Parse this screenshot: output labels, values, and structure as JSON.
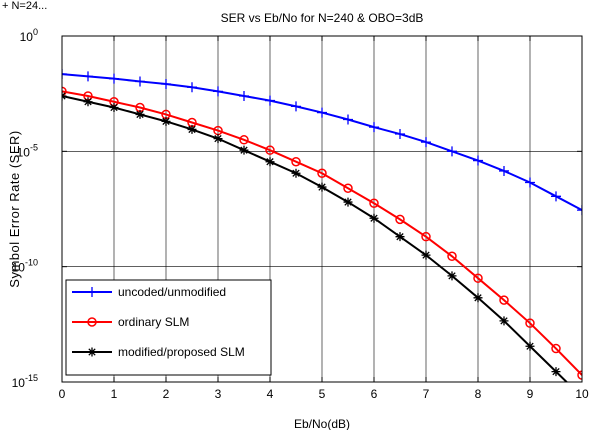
{
  "stray_text": "+ N=24...",
  "chart_data": {
    "type": "line",
    "title": "SER vs Eb/No for N=240 & OBO=3dB",
    "xlabel": "Eb/No(dB)",
    "ylabel": "Symbol Error Rate (SER)",
    "xlim": [
      0,
      10
    ],
    "ylim": [
      1e-15,
      1
    ],
    "yscale": "log",
    "grid": true,
    "legend_position": "bottom-left",
    "x_ticks": [
      "0",
      "1",
      "2",
      "3",
      "4",
      "5",
      "6",
      "7",
      "8",
      "9",
      "10"
    ],
    "y_ticks": [
      {
        "base": "10",
        "exp": "-15"
      },
      {
        "base": "10",
        "exp": "-10"
      },
      {
        "base": "10",
        "exp": "-5"
      },
      {
        "base": "10",
        "exp": "0"
      }
    ],
    "x": [
      0,
      0.5,
      1,
      1.5,
      2,
      2.5,
      3,
      3.5,
      4,
      4.5,
      5,
      5.5,
      6,
      6.5,
      7,
      7.5,
      8,
      8.5,
      9,
      9.5,
      10
    ],
    "series": [
      {
        "name": "uncoded/unmodified",
        "color": "#0000ff",
        "marker": "plus",
        "log10_values": [
          -1.65,
          -1.75,
          -1.85,
          -1.97,
          -2.08,
          -2.22,
          -2.4,
          -2.6,
          -2.8,
          -3.05,
          -3.32,
          -3.62,
          -3.95,
          -4.25,
          -4.6,
          -5.0,
          -5.4,
          -5.85,
          -6.35,
          -6.95,
          -7.55
        ]
      },
      {
        "name": "ordinary SLM",
        "color": "#ff0000",
        "marker": "circle",
        "log10_values": [
          -2.4,
          -2.6,
          -2.85,
          -3.1,
          -3.4,
          -3.75,
          -4.1,
          -4.5,
          -4.95,
          -5.45,
          -5.95,
          -6.6,
          -7.25,
          -7.95,
          -8.7,
          -9.55,
          -10.5,
          -11.45,
          -12.45,
          -13.55,
          -14.7
        ]
      },
      {
        "name": "modified/proposed SLM",
        "color": "#000000",
        "marker": "star",
        "log10_values": [
          -2.6,
          -2.85,
          -3.1,
          -3.4,
          -3.7,
          -4.05,
          -4.45,
          -4.95,
          -5.45,
          -5.95,
          -6.55,
          -7.2,
          -7.9,
          -8.7,
          -9.5,
          -10.4,
          -11.35,
          -12.35,
          -13.45,
          -14.55,
          -15.65
        ]
      }
    ]
  }
}
